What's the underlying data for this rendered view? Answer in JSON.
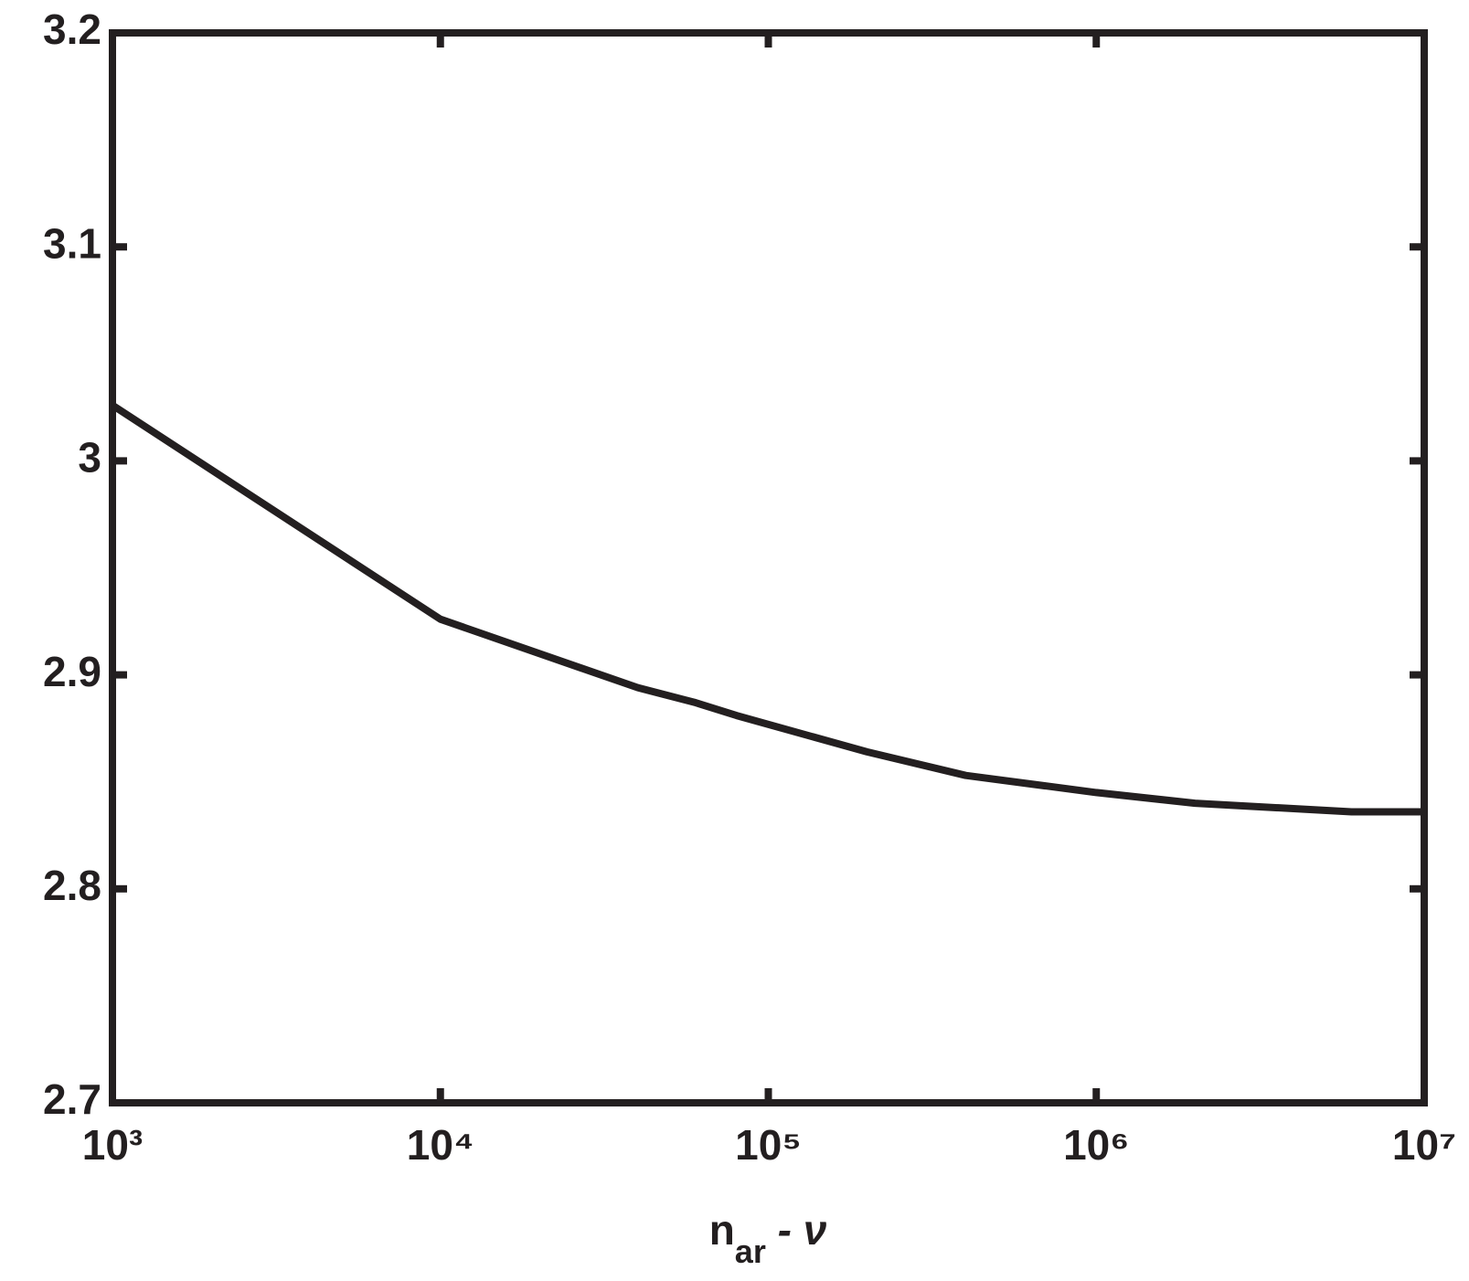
{
  "chart_data": {
    "type": "line",
    "x_label": {
      "base": "n",
      "sub": "ar",
      "rest": " -  ν"
    },
    "x": [
      1000,
      10000,
      40000,
      60000,
      80000,
      200000,
      400000,
      1000000,
      2000000,
      6000000,
      10000000
    ],
    "series": [
      {
        "color": "#231f20",
        "values": [
          3.026,
          2.926,
          2.894,
          2.887,
          2.881,
          2.864,
          2.853,
          2.845,
          2.84,
          2.836,
          2.836
        ]
      }
    ],
    "xscale": "log",
    "xlim": [
      1000,
      10000000
    ],
    "xticks": [
      {
        "value": 1000,
        "label": "10³"
      },
      {
        "value": 10000,
        "label": "10⁴"
      },
      {
        "value": 100000,
        "label": "10⁵"
      },
      {
        "value": 1000000,
        "label": "10⁶"
      },
      {
        "value": 10000000,
        "label": "10⁷"
      }
    ],
    "ylim": [
      2.7,
      3.2
    ],
    "yticks": [
      2.7,
      2.8,
      2.9,
      3,
      3.1,
      3.2
    ],
    "grid": false
  }
}
